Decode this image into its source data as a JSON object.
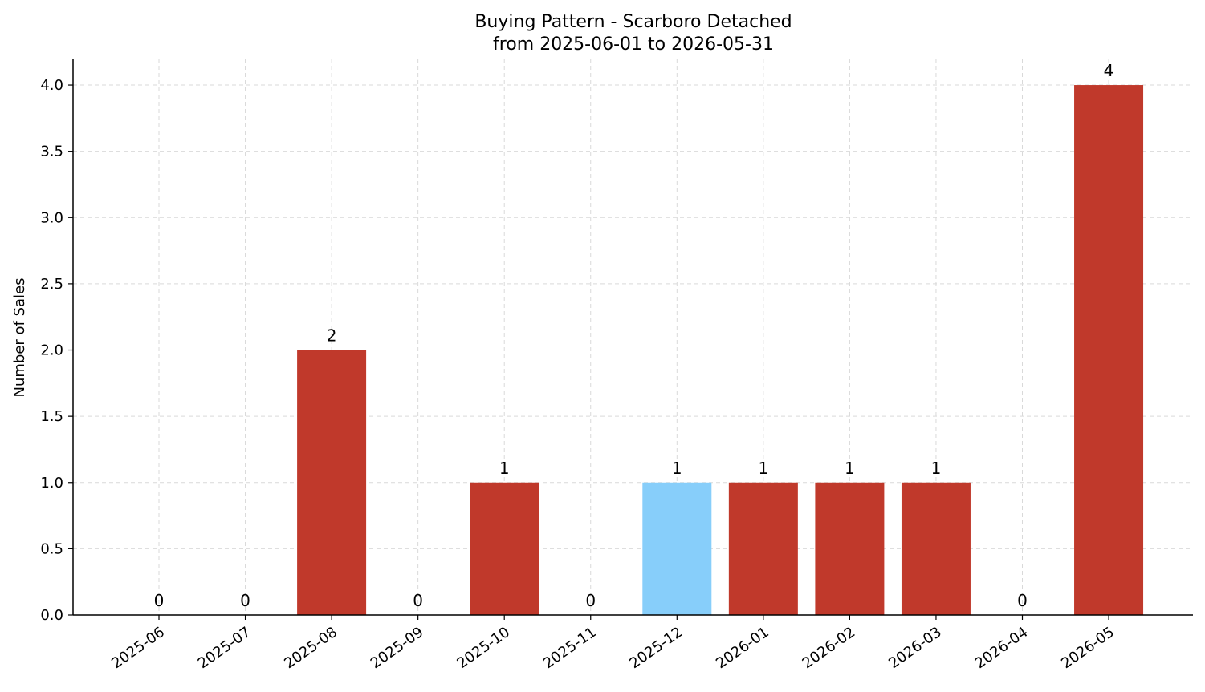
{
  "chart_data": {
    "type": "bar",
    "title": "Buying Pattern - Scarboro Detached",
    "subtitle": "from 2025-06-01 to 2026-05-31",
    "xlabel": "",
    "ylabel": "Number of Sales",
    "categories": [
      "2025-06",
      "2025-07",
      "2025-08",
      "2025-09",
      "2025-10",
      "2025-11",
      "2025-12",
      "2026-01",
      "2026-02",
      "2026-03",
      "2026-04",
      "2026-05"
    ],
    "values": [
      0,
      0,
      2,
      0,
      1,
      0,
      1,
      1,
      1,
      1,
      0,
      4
    ],
    "highlight_index": 6,
    "ylim": [
      0,
      4.2
    ],
    "yticks": [
      "0.0",
      "0.5",
      "1.0",
      "1.5",
      "2.0",
      "2.5",
      "3.0",
      "3.5",
      "4.0"
    ],
    "grid": true,
    "colors": {
      "bar": "#c0392b",
      "highlight": "#87cefa",
      "grid": "#d9d9d9",
      "axis": "#000000"
    }
  }
}
